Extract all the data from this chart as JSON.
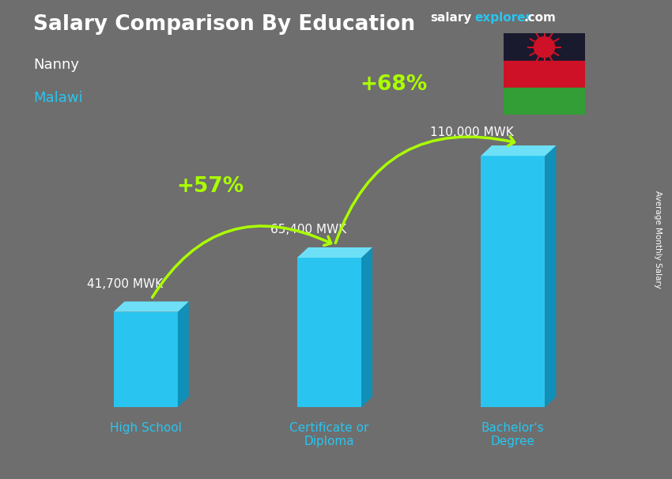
{
  "title": "Salary Comparison By Education",
  "subtitle_job": "Nanny",
  "subtitle_location": "Malawi",
  "ylabel": "Average Monthly Salary",
  "categories": [
    "High School",
    "Certificate or\nDiploma",
    "Bachelor's\nDegree"
  ],
  "values": [
    41700,
    65400,
    110000
  ],
  "bar_labels": [
    "41,700 MWK",
    "65,400 MWK",
    "110,000 MWK"
  ],
  "pct_labels": [
    "+57%",
    "+68%"
  ],
  "bar_front_color": "#29c5f0",
  "bar_right_color": "#1090b8",
  "bar_top_color": "#6de0f8",
  "pct_color": "#aaff00",
  "title_color": "#ffffff",
  "subtitle_job_color": "#ffffff",
  "subtitle_location_color": "#29c5f0",
  "value_label_color": "#ffffff",
  "category_label_color": "#29c5f0",
  "background_color": "#6e6e6e",
  "brand_salary_color": "#ffffff",
  "brand_explorer_color": "#29c5f0",
  "brand_com_color": "#ffffff",
  "ylim": [
    0,
    130000
  ],
  "figsize": [
    8.5,
    6.06
  ],
  "dpi": 100,
  "watermark": "salaryexplorer.com"
}
